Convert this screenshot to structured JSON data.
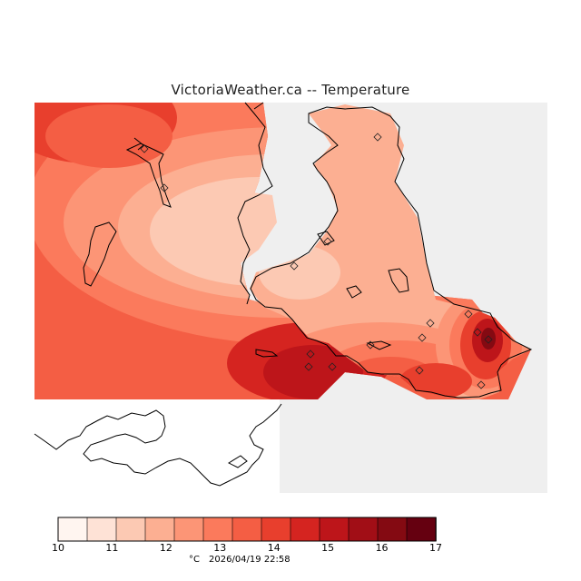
{
  "title": "VictoriaWeather.ca -- Temperature",
  "footer": {
    "unit": "°C",
    "timestamp": "2026/04/19 22:58"
  },
  "legend": {
    "ticks": [
      "10",
      "11",
      "12",
      "13",
      "14",
      "15",
      "16",
      "17"
    ],
    "colors": [
      "#fff5f0",
      "#fee2d6",
      "#fcc9b3",
      "#fcaf92",
      "#fc9576",
      "#fb7a5c",
      "#f45e44",
      "#e83f2d",
      "#d52420",
      "#bd151a",
      "#a10e16",
      "#840a12",
      "#650010"
    ]
  },
  "colors": {
    "land_background": "#efefef",
    "water": "#ffffff",
    "coast": "#000000"
  },
  "stations_visible": 16
}
